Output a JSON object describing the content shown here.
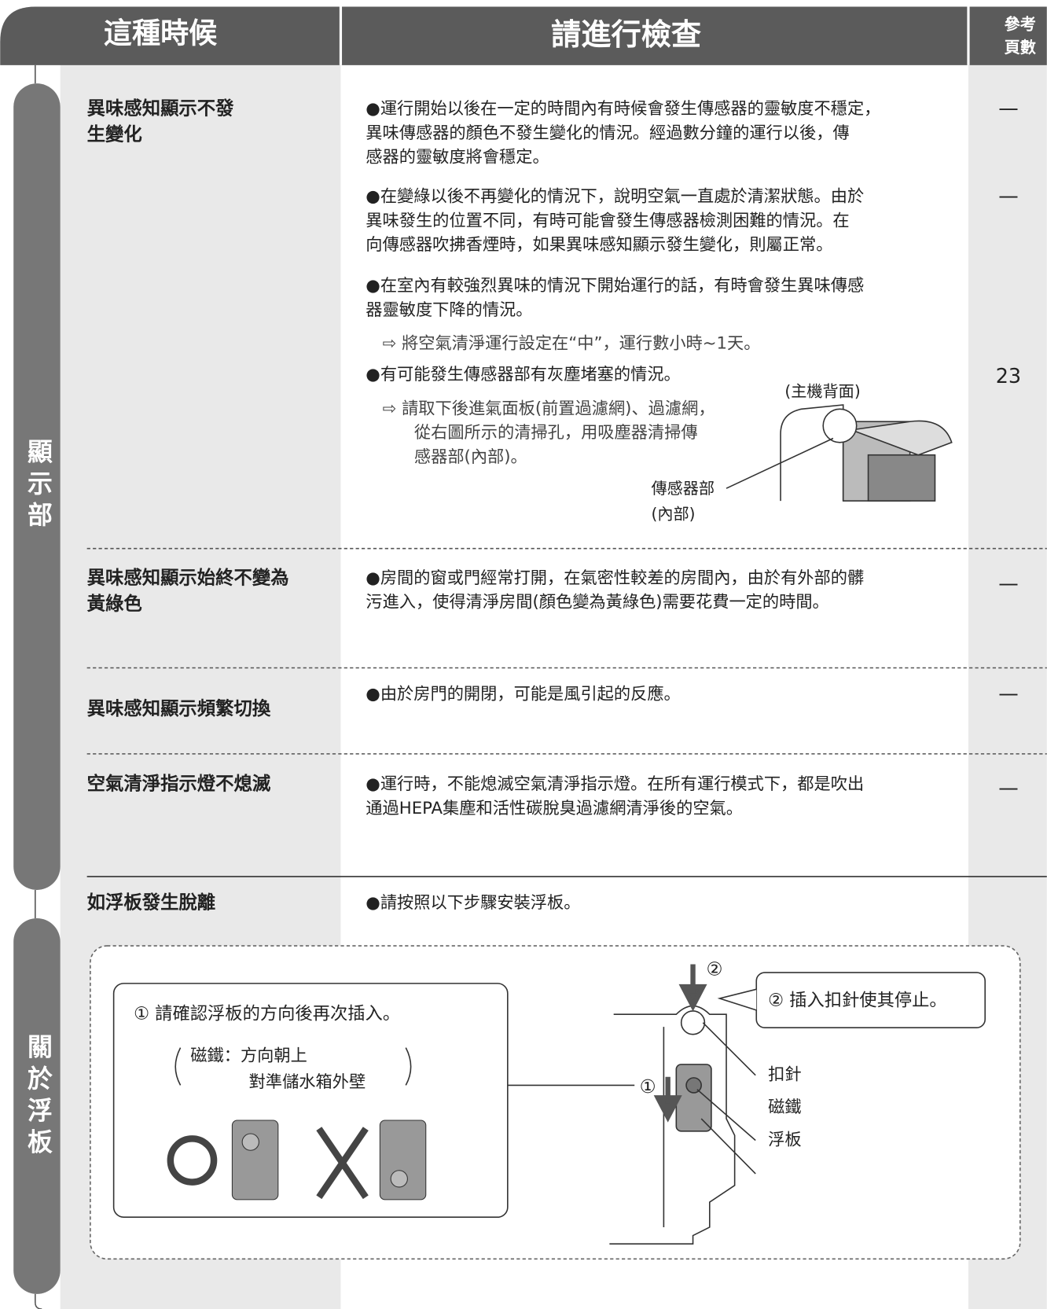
{
  "header": {
    "condition": "這種時候",
    "check": "請進行檢查",
    "page_ref": [
      "參考",
      "頁數"
    ]
  },
  "sections": [
    {
      "label": "顯示部",
      "rows": [
        {
          "symptom": [
            "異味感知顯示不發",
            "生變化"
          ],
          "checks": [
            {
              "text": [
                "●運行開始以後在一定的時間內有時候會發生傳感器的靈敏度不穩定，",
                "異味傳感器的顏色不發生變化的情況。經過數分鐘的運行以後，傳",
                "感器的靈敏度將會穩定。"
              ],
              "page": "—"
            },
            {
              "text": [
                "●在變綠以後不再變化的情況下，說明空氣一直處於清潔狀態。由於",
                "異味發生的位置不同，有時可能會發生傳感器檢測困難的情況。在",
                "向傳感器吹拂香煙時，如果異味感知顯示發生變化，則屬正常。"
              ],
              "page": "—"
            },
            {
              "text": [
                "●在室內有較強烈異味的情況下開始運行的話，有時會發生異味傳感",
                "器靈敏度下降的情況。"
              ],
              "note": [
                "⇨ 將空氣清淨運行設定在“中”，運行數小時~1天。"
              ]
            },
            {
              "text": [
                "●有可能發生傳感器部有灰塵堵塞的情況。"
              ],
              "note": [
                "⇨ 請取下後進氣面板(前置過濾網)、過濾網，",
                "從右圖所示的清掃孔，用吸塵器清掃傳",
                "感器部(內部)。"
              ],
              "figure": {
                "caption": "(主機背面)",
                "label": [
                  "傳感器部",
                  "(內部)"
                ]
              },
              "page": 23
            }
          ]
        },
        {
          "symptom": [
            "異味感知顯示始終不變為",
            "黃綠色"
          ],
          "checks": [
            {
              "text": [
                "●房間的窗或門經常打開，在氣密性較差的房間內，由於有外部的髒",
                "污進入，使得清淨房間(顏色變為黃綠色)需要花費一定的時間。"
              ],
              "page": "—"
            }
          ]
        },
        {
          "symptom": [
            "異味感知顯示頻繁切換"
          ],
          "checks": [
            {
              "text": [
                "●由於房門的開閉，可能是風引起的反應。"
              ],
              "page": "—"
            }
          ]
        },
        {
          "symptom": [
            "空氣清淨指示燈不熄滅"
          ],
          "checks": [
            {
              "text": [
                "●運行時，不能熄滅空氣清淨指示燈。在所有運行模式下，都是吹出",
                "通過HEPA集塵和活性碳脫臭過濾網清淨後的空氣。"
              ],
              "page": "—"
            }
          ]
        }
      ]
    },
    {
      "label": "關於浮板",
      "rows": [
        {
          "symptom": [
            "如浮板發生脫離"
          ],
          "checks": [
            {
              "text": [
                "●請按照以下步驟安裝浮板。"
              ]
            }
          ]
        }
      ],
      "figure": {
        "step1": "① 請確認浮板的方向後再次插入。",
        "step1_note": [
          "磁鐵：方向朝上",
          "對準儲水箱外壁"
        ],
        "step2": "② 插入扣針使其停止。",
        "arrow_labels": [
          "②",
          "①"
        ],
        "parts": [
          "扣針",
          "磁鐵",
          "浮板"
        ]
      }
    }
  ]
}
